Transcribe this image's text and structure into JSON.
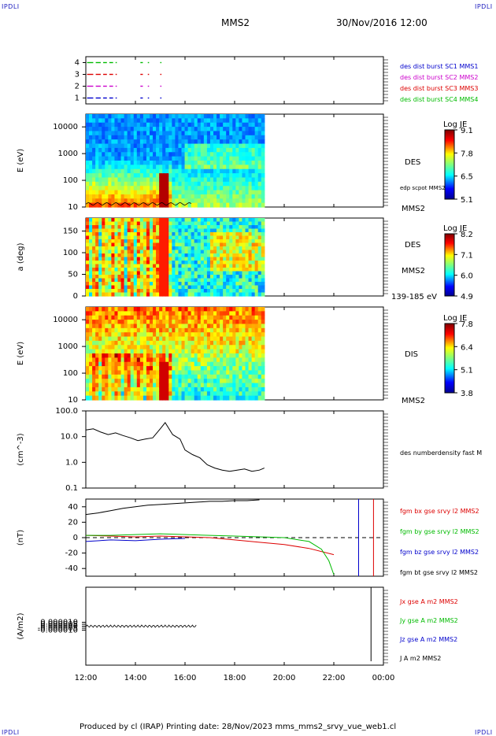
{
  "header": {
    "corner_left": "IPDLI",
    "corner_right": "IPDLI",
    "spacecraft": "MMS2",
    "datetime": "30/Nov/2016 12:00"
  },
  "footer": {
    "text": "Produced by cl (IRAP)   Printing date: 28/Nov/2023   mms_mms2_srvy_vue_web1.cl",
    "corner_left": "IPDLI",
    "corner_right": "IPDLI"
  },
  "colors": {
    "sc1": "#0000cc",
    "sc2": "#cc00cc",
    "sc3": "#dd0000",
    "sc4": "#00bb00",
    "bx": "#dd0000",
    "by": "#00bb00",
    "bz": "#0000cc",
    "bt": "#000000"
  },
  "chart_data": [
    {
      "type": "scatter",
      "panel": "burst-availability",
      "yticks": [
        "1",
        "2",
        "3",
        "4"
      ],
      "ylim": [
        0.5,
        4.5
      ],
      "series": [
        {
          "name": "des dist burst SC1 MMS1",
          "y": 1,
          "intervals_hours": [
            [
              12.05,
              12.3
            ],
            [
              12.4,
              12.6
            ],
            [
              12.7,
              12.85
            ],
            [
              12.95,
              13.1
            ],
            [
              13.2,
              13.25
            ],
            [
              14.2,
              14.3
            ],
            [
              14.5,
              14.55
            ],
            [
              15.0,
              15.05
            ]
          ]
        },
        {
          "name": "des dist burst SC2 MMS2",
          "y": 2,
          "intervals_hours": [
            [
              12.05,
              12.3
            ],
            [
              12.4,
              12.6
            ],
            [
              12.7,
              12.85
            ],
            [
              12.95,
              13.1
            ],
            [
              13.2,
              13.25
            ],
            [
              14.2,
              14.3
            ],
            [
              14.5,
              14.55
            ],
            [
              15.0,
              15.05
            ]
          ]
        },
        {
          "name": "des dist burst SC3 MMS3",
          "y": 3,
          "intervals_hours": [
            [
              12.05,
              12.3
            ],
            [
              12.4,
              12.6
            ],
            [
              12.7,
              12.85
            ],
            [
              12.95,
              13.1
            ],
            [
              13.2,
              13.25
            ],
            [
              14.2,
              14.3
            ],
            [
              14.5,
              14.55
            ],
            [
              15.0,
              15.05
            ]
          ]
        },
        {
          "name": "des dist burst SC4 MMS4",
          "y": 4,
          "intervals_hours": [
            [
              12.05,
              12.3
            ],
            [
              12.4,
              12.6
            ],
            [
              12.7,
              12.85
            ],
            [
              12.95,
              13.1
            ],
            [
              13.2,
              13.25
            ],
            [
              14.2,
              14.3
            ],
            [
              14.5,
              14.55
            ],
            [
              15.0,
              15.05
            ]
          ]
        }
      ]
    },
    {
      "type": "heatmap",
      "panel": "des-energy",
      "ylabel": "E (eV)",
      "yscale": "log",
      "ylim": [
        10,
        30000
      ],
      "yticks": [
        "10",
        "100",
        "1000",
        "10000"
      ],
      "data_end_hour": 19.2,
      "label": "DES",
      "sc_label": "MMS2",
      "overlay_label": "edp scpot MMS2",
      "colorbar": {
        "title": "Log JE",
        "ticks": [
          "9.1",
          "7.8",
          "6.5",
          "5.1"
        ]
      }
    },
    {
      "type": "heatmap",
      "panel": "des-pitch-angle",
      "ylabel": "a (deg)",
      "ylim": [
        0,
        180
      ],
      "yticks": [
        "0",
        "50",
        "100",
        "150"
      ],
      "data_end_hour": 19.2,
      "label": "DES",
      "sc_label": "MMS2",
      "energy_label": "139-185 eV",
      "colorbar": {
        "title": "Log JE",
        "ticks": [
          "8.2",
          "7.1",
          "6.0",
          "4.9"
        ]
      }
    },
    {
      "type": "heatmap",
      "panel": "dis-energy",
      "ylabel": "E (eV)",
      "yscale": "log",
      "ylim": [
        10,
        30000
      ],
      "yticks": [
        "10",
        "100",
        "1000",
        "10000"
      ],
      "data_end_hour": 19.2,
      "label": "DIS",
      "sc_label": "MMS2",
      "colorbar": {
        "title": "Log JE",
        "ticks": [
          "7.8",
          "6.4",
          "5.1",
          "3.8"
        ]
      }
    },
    {
      "type": "line",
      "panel": "density",
      "ylabel": "(cm^-3)",
      "yscale": "log",
      "ylim": [
        0.1,
        100
      ],
      "yticks": [
        "0.1",
        "1.0",
        "10.0",
        "100.0"
      ],
      "series": [
        {
          "name": "des numberdensity fast M",
          "x": [
            12.0,
            12.3,
            12.6,
            12.9,
            13.2,
            13.5,
            13.8,
            14.1,
            14.4,
            14.7,
            15.0,
            15.2,
            15.5,
            15.8,
            16.0,
            16.3,
            16.6,
            16.9,
            17.2,
            17.5,
            17.8,
            18.1,
            18.4,
            18.7,
            19.0,
            19.2
          ],
          "y": [
            18,
            20,
            15,
            12,
            14,
            11,
            9,
            7,
            8,
            9,
            20,
            35,
            12,
            8,
            3,
            2,
            1.5,
            0.8,
            0.6,
            0.5,
            0.45,
            0.5,
            0.55,
            0.45,
            0.5,
            0.6
          ]
        }
      ]
    },
    {
      "type": "line",
      "panel": "magnetic-field",
      "ylabel": "(nT)",
      "ylim": [
        -50,
        50
      ],
      "yticks": [
        "-40",
        "-20",
        "0",
        "20",
        "40"
      ],
      "series": [
        {
          "name": "fgm bx gse srvy l2 MMS2",
          "x": [
            12.0,
            13.0,
            14.0,
            15.0,
            16.0,
            17.0,
            18.0,
            19.0,
            20.0,
            21.0,
            22.0
          ],
          "y": [
            3,
            2,
            1,
            2,
            1,
            0,
            -3,
            -6,
            -9,
            -14,
            -22
          ]
        },
        {
          "name": "fgm by gse srvy l2 MMS2",
          "x": [
            12.0,
            13.0,
            14.0,
            15.0,
            16.0,
            17.0,
            18.0,
            19.0,
            20.0,
            21.0,
            21.5,
            21.8,
            22.0
          ],
          "y": [
            3,
            3,
            4,
            5,
            4,
            3,
            2,
            1,
            0,
            -5,
            -15,
            -30,
            -48
          ]
        },
        {
          "name": "fgm bz gse srvy l2 MMS2",
          "x": [
            12.0,
            13.0,
            14.0,
            15.0,
            16.0
          ],
          "y": [
            -5,
            -3,
            -4,
            -2,
            -1
          ]
        },
        {
          "name": "fgm bt gse srvy l2 MMS2",
          "x": [
            12.0,
            12.5,
            13.0,
            13.5,
            14.0,
            14.5,
            15.0,
            15.5,
            16.0,
            16.5,
            17.0,
            17.5,
            18.0,
            18.5,
            19.0
          ],
          "y": [
            30,
            32,
            35,
            38,
            40,
            42,
            43,
            44,
            45,
            46,
            47,
            47,
            48,
            48,
            49
          ]
        }
      ]
    },
    {
      "type": "line",
      "panel": "current-density",
      "ylabel": "(A/m2)",
      "ylim": [
        -0.0001,
        0.0001
      ],
      "yticks": [
        "-0.000010",
        "-0.000005",
        "0.000000",
        "0.000005",
        "0.000010"
      ],
      "series": [
        {
          "name": "Jx gse A m2 MMS2"
        },
        {
          "name": "Jy gse A m2 MMS2"
        },
        {
          "name": "Jz gse A m2 MMS2"
        },
        {
          "name": "J A m2 MMS2"
        }
      ]
    }
  ],
  "time_axis": {
    "start_hour": 12,
    "end_hour": 24,
    "tick_labels": [
      "12:00",
      "14:00",
      "16:00",
      "18:00",
      "20:00",
      "22:00",
      "00:00"
    ]
  }
}
